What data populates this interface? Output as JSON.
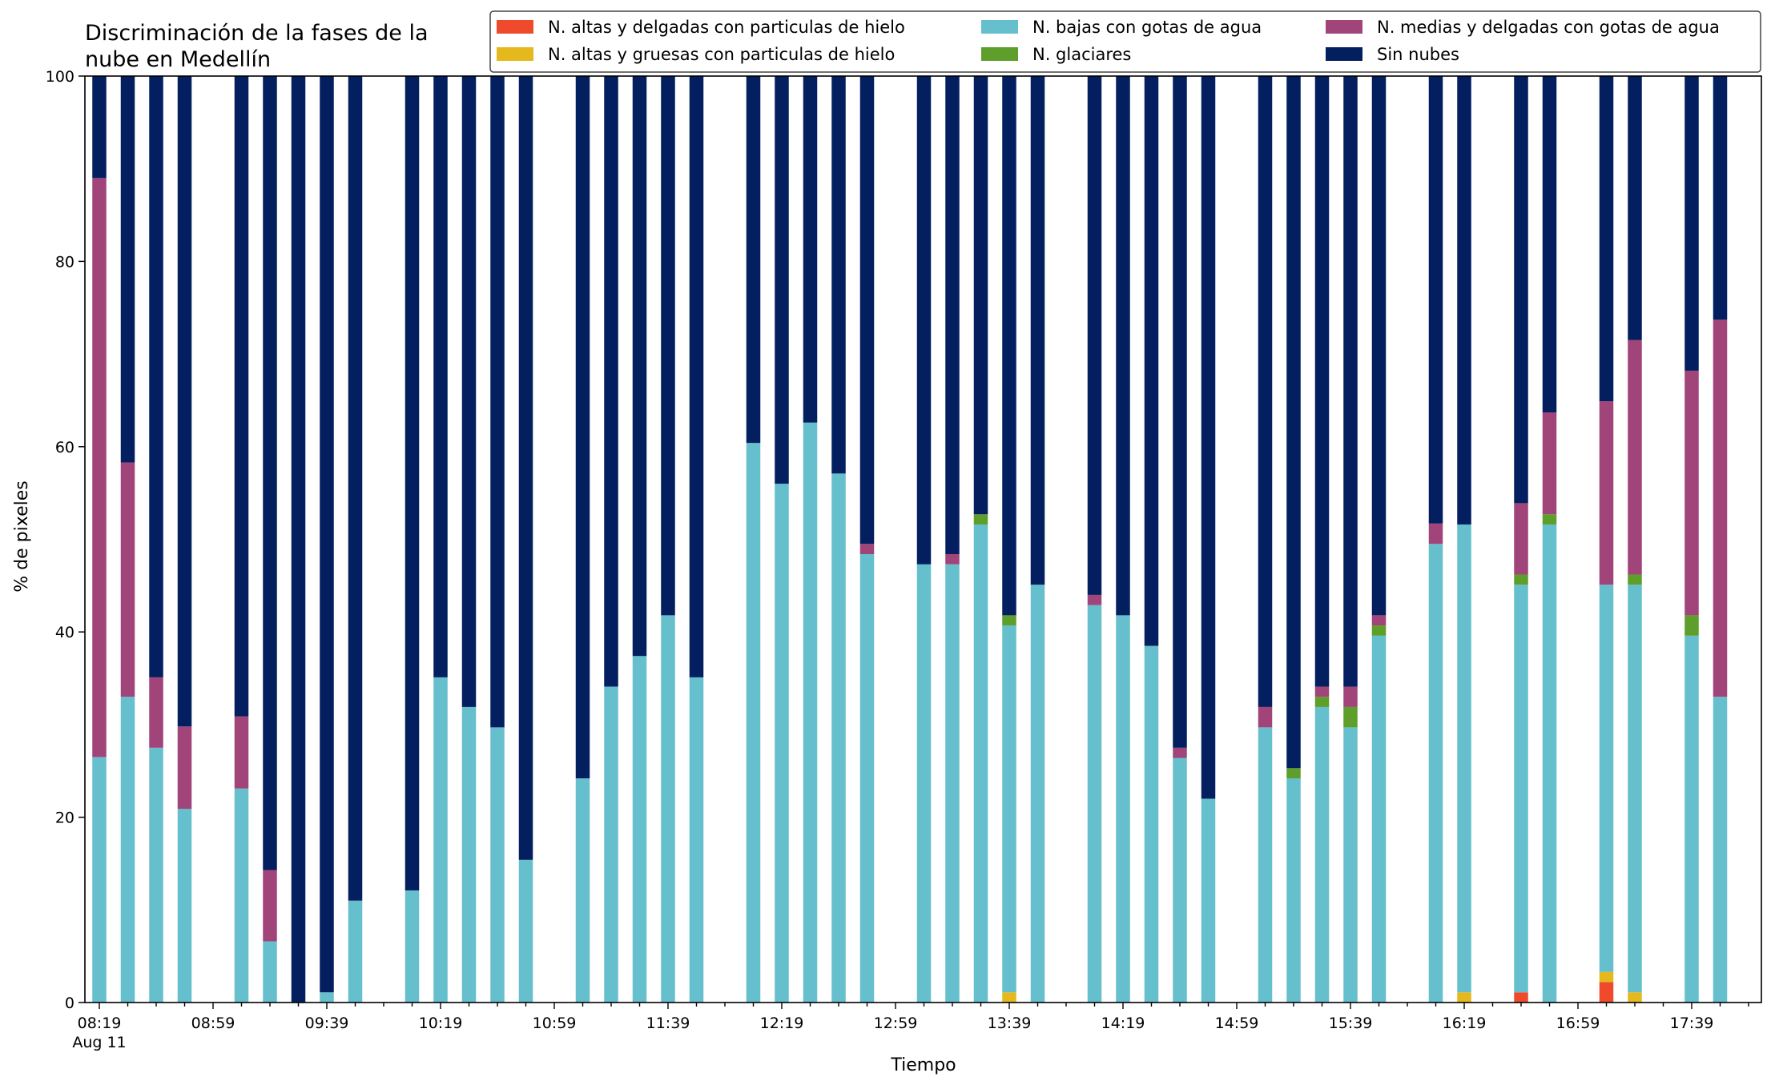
{
  "chart_data": {
    "type": "bar",
    "stacked": true,
    "title": "Discriminación de la fases de la\nnube en Medellín",
    "xlabel": "Tiempo",
    "ylabel": "% de pixeles",
    "ylim": [
      0,
      100
    ],
    "yticks": [
      0,
      20,
      40,
      60,
      80,
      100
    ],
    "x_slots": 59,
    "x_ticks": [
      {
        "slot": 0,
        "label": "08:19",
        "sublabel": "Aug 11"
      },
      {
        "slot": 4,
        "label": "08:59"
      },
      {
        "slot": 8,
        "label": "09:39"
      },
      {
        "slot": 12,
        "label": "10:19"
      },
      {
        "slot": 16,
        "label": "10:59"
      },
      {
        "slot": 20,
        "label": "11:39"
      },
      {
        "slot": 24,
        "label": "12:19"
      },
      {
        "slot": 28,
        "label": "12:59"
      },
      {
        "slot": 32,
        "label": "13:39"
      },
      {
        "slot": 36,
        "label": "14:19"
      },
      {
        "slot": 40,
        "label": "14:59"
      },
      {
        "slot": 44,
        "label": "15:39"
      },
      {
        "slot": 48,
        "label": "16:19"
      },
      {
        "slot": 52,
        "label": "16:59"
      },
      {
        "slot": 56,
        "label": "17:39"
      }
    ],
    "legend_position": "top-right",
    "series": [
      {
        "name": "N. altas y delgadas con particulas de hielo",
        "color": "#ee4a2b"
      },
      {
        "name": "N. altas y gruesas con particulas de hielo",
        "color": "#e5b81d"
      },
      {
        "name": "N. bajas con gotas de agua",
        "color": "#66bfcc"
      },
      {
        "name": "N. glaciares",
        "color": "#5e9e2a"
      },
      {
        "name": "N. medias y delgadas con gotas de agua",
        "color": "#a0447a"
      },
      {
        "name": "Sin nubes",
        "color": "#031f60"
      }
    ],
    "bars": [
      {
        "slot": 0,
        "values": [
          0,
          0,
          26.5,
          0,
          62.5,
          11
        ]
      },
      {
        "slot": 1,
        "values": [
          0,
          0,
          33,
          0,
          25.3,
          41.7
        ]
      },
      {
        "slot": 2,
        "values": [
          0,
          0,
          27.5,
          0,
          7.6,
          64.9
        ]
      },
      {
        "slot": 3,
        "values": [
          0,
          0,
          20.9,
          0,
          8.9,
          70.2
        ]
      },
      {
        "slot": 5,
        "values": [
          0,
          0,
          23.1,
          0,
          7.8,
          69.1
        ]
      },
      {
        "slot": 6,
        "values": [
          0,
          0,
          6.6,
          0,
          7.7,
          85.7
        ]
      },
      {
        "slot": 7,
        "values": [
          0,
          0,
          0,
          0,
          0,
          100
        ]
      },
      {
        "slot": 8,
        "values": [
          0,
          0,
          1.1,
          0,
          0,
          98.9
        ]
      },
      {
        "slot": 9,
        "values": [
          0,
          0,
          11,
          0,
          0,
          89
        ]
      },
      {
        "slot": 11,
        "values": [
          0,
          0,
          12.1,
          0,
          0,
          87.9
        ]
      },
      {
        "slot": 12,
        "values": [
          0,
          0,
          35.1,
          0,
          0,
          64.9
        ]
      },
      {
        "slot": 13,
        "values": [
          0,
          0,
          31.9,
          0,
          0,
          68.1
        ]
      },
      {
        "slot": 14,
        "values": [
          0,
          0,
          29.7,
          0,
          0,
          70.3
        ]
      },
      {
        "slot": 15,
        "values": [
          0,
          0,
          15.4,
          0,
          0,
          84.6
        ]
      },
      {
        "slot": 17,
        "values": [
          0,
          0,
          24.2,
          0,
          0,
          75.8
        ]
      },
      {
        "slot": 18,
        "values": [
          0,
          0,
          34.1,
          0,
          0,
          65.9
        ]
      },
      {
        "slot": 19,
        "values": [
          0,
          0,
          37.4,
          0,
          0,
          62.6
        ]
      },
      {
        "slot": 20,
        "values": [
          0,
          0,
          41.8,
          0,
          0,
          58.2
        ]
      },
      {
        "slot": 21,
        "values": [
          0,
          0,
          35.1,
          0,
          0,
          64.9
        ]
      },
      {
        "slot": 23,
        "values": [
          0,
          0,
          60.4,
          0,
          0,
          39.6
        ]
      },
      {
        "slot": 24,
        "values": [
          0,
          0,
          56,
          0,
          0,
          44
        ]
      },
      {
        "slot": 25,
        "values": [
          0,
          0,
          62.6,
          0,
          0,
          37.4
        ]
      },
      {
        "slot": 26,
        "values": [
          0,
          0,
          57.1,
          0,
          0,
          42.9
        ]
      },
      {
        "slot": 27,
        "values": [
          0,
          0,
          48.4,
          0,
          1.1,
          50.5
        ]
      },
      {
        "slot": 29,
        "values": [
          0,
          0,
          47.3,
          0,
          0,
          52.7
        ]
      },
      {
        "slot": 30,
        "values": [
          0,
          0,
          47.3,
          0,
          1.1,
          51.6
        ]
      },
      {
        "slot": 31,
        "values": [
          0,
          0,
          51.6,
          1.1,
          0,
          47.3
        ]
      },
      {
        "slot": 32,
        "values": [
          0,
          1.1,
          39.6,
          1.1,
          0,
          58.2
        ]
      },
      {
        "slot": 33,
        "values": [
          0,
          0,
          45.1,
          0,
          0,
          54.9
        ]
      },
      {
        "slot": 35,
        "values": [
          0,
          0,
          42.9,
          0,
          1.1,
          56
        ]
      },
      {
        "slot": 36,
        "values": [
          0,
          0,
          41.8,
          0,
          0,
          58.2
        ]
      },
      {
        "slot": 37,
        "values": [
          0,
          0,
          38.5,
          0,
          0,
          61.5
        ]
      },
      {
        "slot": 38,
        "values": [
          0,
          0,
          26.4,
          0,
          1.1,
          72.5
        ]
      },
      {
        "slot": 39,
        "values": [
          0,
          0,
          22,
          0,
          0,
          78
        ]
      },
      {
        "slot": 41,
        "values": [
          0,
          0,
          29.7,
          0,
          2.2,
          68.1
        ]
      },
      {
        "slot": 42,
        "values": [
          0,
          0,
          24.2,
          1.1,
          0,
          74.7
        ]
      },
      {
        "slot": 43,
        "values": [
          0,
          0,
          31.9,
          1.1,
          1.1,
          65.9
        ]
      },
      {
        "slot": 44,
        "values": [
          0,
          0,
          29.7,
          2.2,
          2.2,
          65.9
        ]
      },
      {
        "slot": 45,
        "values": [
          0,
          0,
          39.6,
          1.1,
          1.1,
          58.2
        ]
      },
      {
        "slot": 47,
        "values": [
          0,
          0,
          49.5,
          0,
          2.2,
          48.3
        ]
      },
      {
        "slot": 48,
        "values": [
          0,
          1.1,
          50.5,
          0,
          0,
          48.4
        ]
      },
      {
        "slot": 50,
        "values": [
          1.1,
          0,
          44,
          1.1,
          7.7,
          46.1
        ]
      },
      {
        "slot": 51,
        "values": [
          0,
          0,
          51.6,
          1.1,
          11,
          36.3
        ]
      },
      {
        "slot": 53,
        "values": [
          2.2,
          1.1,
          41.8,
          0,
          19.8,
          35.1
        ]
      },
      {
        "slot": 54,
        "values": [
          0,
          1.1,
          44,
          1.1,
          25.3,
          28.5
        ]
      },
      {
        "slot": 56,
        "values": [
          0,
          0,
          39.6,
          2.2,
          26.4,
          31.8
        ]
      },
      {
        "slot": 57,
        "values": [
          0,
          0,
          33,
          0,
          40.7,
          26.3
        ]
      }
    ]
  }
}
